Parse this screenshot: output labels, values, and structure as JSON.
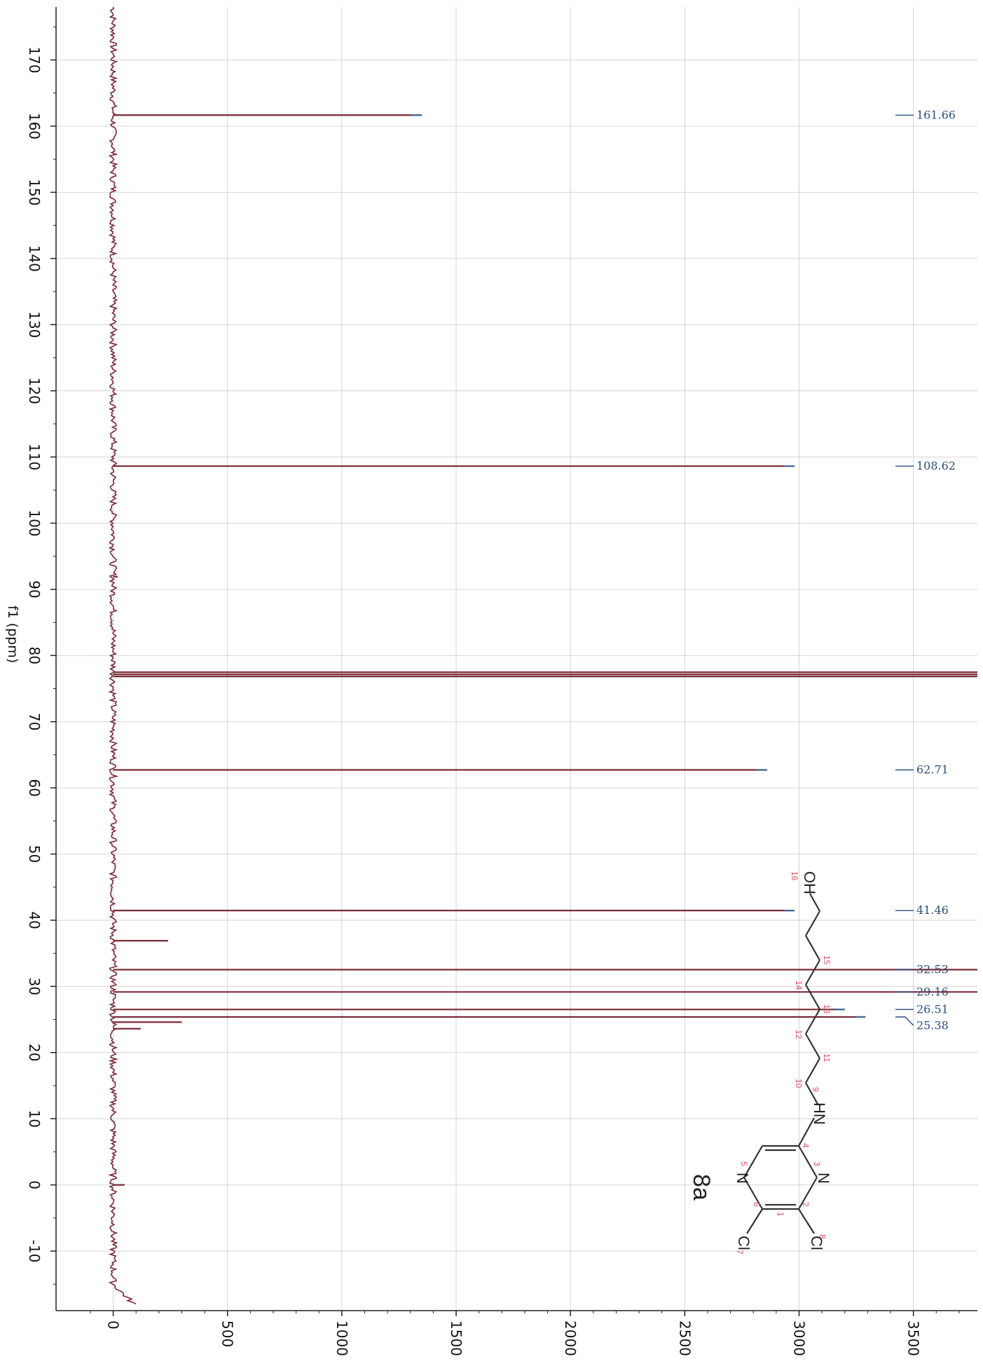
{
  "chart_data": {
    "type": "nmr_spectrum",
    "orientation": "rotated-90",
    "xlabel": "f1 (ppm)",
    "ylabel": "",
    "ppm_ticks": [
      170,
      160,
      150,
      140,
      130,
      120,
      110,
      100,
      90,
      80,
      70,
      60,
      50,
      40,
      30,
      20,
      10,
      0,
      -10
    ],
    "ppm_range": [
      -19,
      178
    ],
    "intensity_ticks": [
      0,
      500,
      1000,
      1500,
      2000,
      2500,
      3000,
      3500
    ],
    "intensity_range": [
      -250,
      3780
    ],
    "grid": true,
    "peaks": [
      {
        "ppm": 161.66,
        "intensity": 1350,
        "label": "161.66"
      },
      {
        "ppm": 108.62,
        "intensity": 2980,
        "label": "108.62"
      },
      {
        "ppm": 77.48,
        "intensity": 3780,
        "label": ""
      },
      {
        "ppm": 77.16,
        "intensity": 3780,
        "label": ""
      },
      {
        "ppm": 76.84,
        "intensity": 3780,
        "label": ""
      },
      {
        "ppm": 62.71,
        "intensity": 2860,
        "label": "62.71"
      },
      {
        "ppm": 41.46,
        "intensity": 2980,
        "label": "41.46"
      },
      {
        "ppm": 36.9,
        "intensity": 240,
        "label": ""
      },
      {
        "ppm": 32.53,
        "intensity": 3780,
        "label": "32.53"
      },
      {
        "ppm": 29.16,
        "intensity": 3780,
        "label": "29.16"
      },
      {
        "ppm": 26.51,
        "intensity": 3200,
        "label": "26.51"
      },
      {
        "ppm": 25.38,
        "intensity": 3290,
        "label": "25.38"
      },
      {
        "ppm": 24.6,
        "intensity": 300,
        "label": ""
      },
      {
        "ppm": 23.6,
        "intensity": 120,
        "label": ""
      },
      {
        "ppm": 91.9,
        "intensity": 20,
        "label": ""
      },
      {
        "ppm": 0.0,
        "intensity": 50,
        "label": ""
      }
    ],
    "peak_labels": [
      "161.66",
      "108.62",
      "62.71",
      "41.46",
      "32.53",
      "29.16",
      "26.51",
      "25.38"
    ],
    "colors": {
      "spectrum": "#7a2a38",
      "peak_tip": "#3a6fa0",
      "label": "#2a4f7a",
      "grid": "#d4d4d4"
    }
  },
  "structure": {
    "compound_label": "8a",
    "atoms": [
      "Cl",
      "N",
      "N",
      "Cl",
      "HN",
      "OH"
    ],
    "atom_numbers": [
      "1",
      "2",
      "3",
      "4",
      "5",
      "6",
      "7",
      "8",
      "9",
      "10",
      "11",
      "12",
      "13",
      "14",
      "15",
      "16"
    ]
  }
}
